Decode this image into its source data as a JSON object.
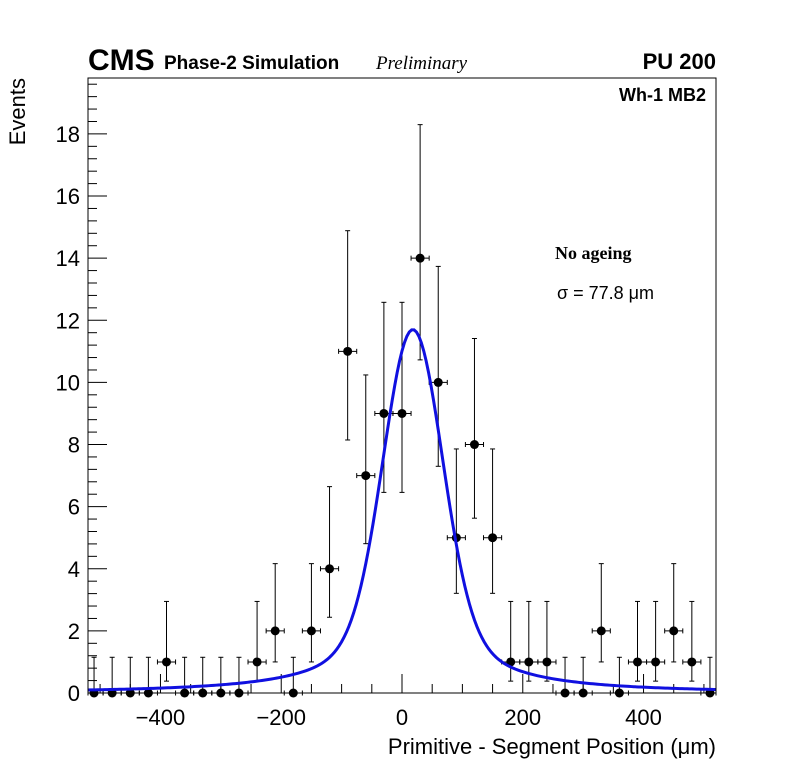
{
  "chart_data": {
    "type": "scatter",
    "header": {
      "experiment": "CMS",
      "simulation": "Phase-2 Simulation",
      "status": "Preliminary",
      "pileup": "PU 200"
    },
    "region_label": "Wh-1 MB2",
    "annotation": "No ageing",
    "sigma_label": "σ = 77.8 μm",
    "xlabel": "Primitive - Segment Position (μm)",
    "ylabel": "Events",
    "xlim": [
      -520,
      520
    ],
    "ylim": [
      0,
      19.8
    ],
    "xticks": [
      -400,
      -200,
      0,
      200,
      400
    ],
    "xtick_labels": [
      "−400",
      "−200",
      "0",
      "200",
      "400"
    ],
    "yticks": [
      0,
      2,
      4,
      6,
      8,
      10,
      12,
      14,
      16,
      18
    ],
    "ytick_labels": [
      "0",
      "2",
      "4",
      "6",
      "8",
      "10",
      "12",
      "14",
      "16",
      "18"
    ],
    "bin_width": 30,
    "series": [
      {
        "name": "data",
        "x": [
          -510,
          -480,
          -450,
          -420,
          -390,
          -360,
          -330,
          -300,
          -270,
          -240,
          -210,
          -180,
          -150,
          -120,
          -90,
          -60,
          -30,
          0,
          30,
          60,
          90,
          120,
          150,
          180,
          210,
          240,
          270,
          300,
          330,
          360,
          390,
          420,
          450,
          480,
          510
        ],
        "values": [
          0,
          0,
          0,
          0,
          1,
          0,
          0,
          0,
          0,
          1,
          2,
          0,
          2,
          4,
          11,
          7,
          9,
          9,
          14,
          10,
          5,
          8,
          5,
          1,
          1,
          1,
          0,
          0,
          2,
          0,
          1,
          1,
          2,
          1,
          0
        ]
      }
    ],
    "fit": {
      "name": "fit",
      "color": "#1010e0",
      "mean": 18,
      "peak": 11.7,
      "core_sigma": 48,
      "tail_fraction": 0.25,
      "tail_width": 100
    },
    "marker_color": "#000000"
  }
}
